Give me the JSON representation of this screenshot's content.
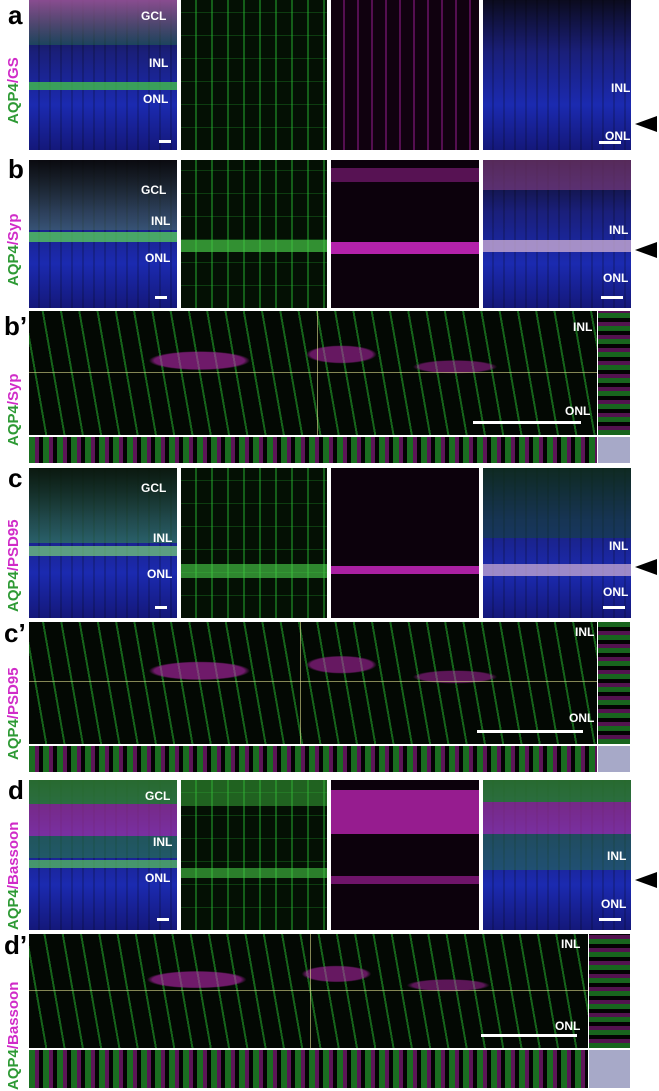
{
  "panels": {
    "a": {
      "letter": "a",
      "label_green": "AQP4",
      "label_sep": "/",
      "label_magenta": "GS"
    },
    "b": {
      "letter": "b",
      "label_green": "AQP4",
      "label_sep": "/",
      "label_magenta": "Syp"
    },
    "b_prime": {
      "letter": "b’",
      "label_green": "AQP4",
      "label_sep": "/",
      "label_magenta": "Syp"
    },
    "c": {
      "letter": "c",
      "label_green": "AQP4",
      "label_sep": "/",
      "label_magenta": "PSD95"
    },
    "c_prime": {
      "letter": "c’",
      "label_green": "AQP4",
      "label_sep": "/",
      "label_magenta": "PSD95"
    },
    "d": {
      "letter": "d",
      "label_green": "AQP4",
      "label_sep": "/",
      "label_magenta": "Bassoon"
    },
    "d_prime": {
      "letter": "d’",
      "label_green": "AQP4",
      "label_sep": "/",
      "label_magenta": "Bassoon"
    }
  },
  "layers": {
    "gcl": "GCL",
    "inl": "INL",
    "onl": "ONL"
  },
  "colors": {
    "green": "#2e9a35",
    "magenta": "#d02cc8",
    "nuclei": "#1b2ab0"
  }
}
